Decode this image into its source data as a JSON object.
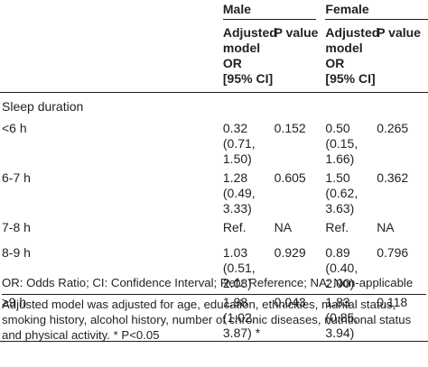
{
  "table": {
    "groups": [
      "Male",
      "Female"
    ],
    "headers": {
      "male_model": "Adjusted model OR [95% CI]",
      "male_p": "P value",
      "female_model": "Adjusted model OR [95% CI]",
      "female_p": "P value"
    },
    "section_label": "Sleep duration",
    "rows": [
      {
        "label": "<6 h",
        "male_or": "0.32 (0.71, 1.50)",
        "male_p": "0.152",
        "female_or": "0.50 (0.15, 1.66)",
        "female_p": "0.265"
      },
      {
        "label": "6-7 h",
        "male_or": "1.28 (0.49, 3.33)",
        "male_p": "0.605",
        "female_or": "1.50 (0.62, 3.63)",
        "female_p": "0.362"
      },
      {
        "label": "7-8 h",
        "male_or": "Ref.",
        "male_p": "NA",
        "female_or": "Ref.",
        "female_p": "NA"
      },
      {
        "label": "8-9 h",
        "male_or": "1.03 (0.51, 2.08)",
        "male_p": "0.929",
        "female_or": "0.89 (0.40, 2.00)",
        "female_p": "0.796"
      },
      {
        "label": "≥9 h",
        "male_or": "1.98 (1.02, 3.87) *",
        "male_p": "0.043",
        "female_or": "1.83 (0.85, 3.94)",
        "female_p": "0.118"
      }
    ]
  },
  "footnotes": {
    "abbreviations": "OR: Odds Ratio; CI: Confidence Interval; Ref.: Reference; NA: Non-applicable",
    "adjustment": "Adjusted model was adjusted for age, education, ethnicities, marital status, smoking history, alcohol history, number of chronic diseases, nutritional status and physical activity. * P<0.05"
  }
}
